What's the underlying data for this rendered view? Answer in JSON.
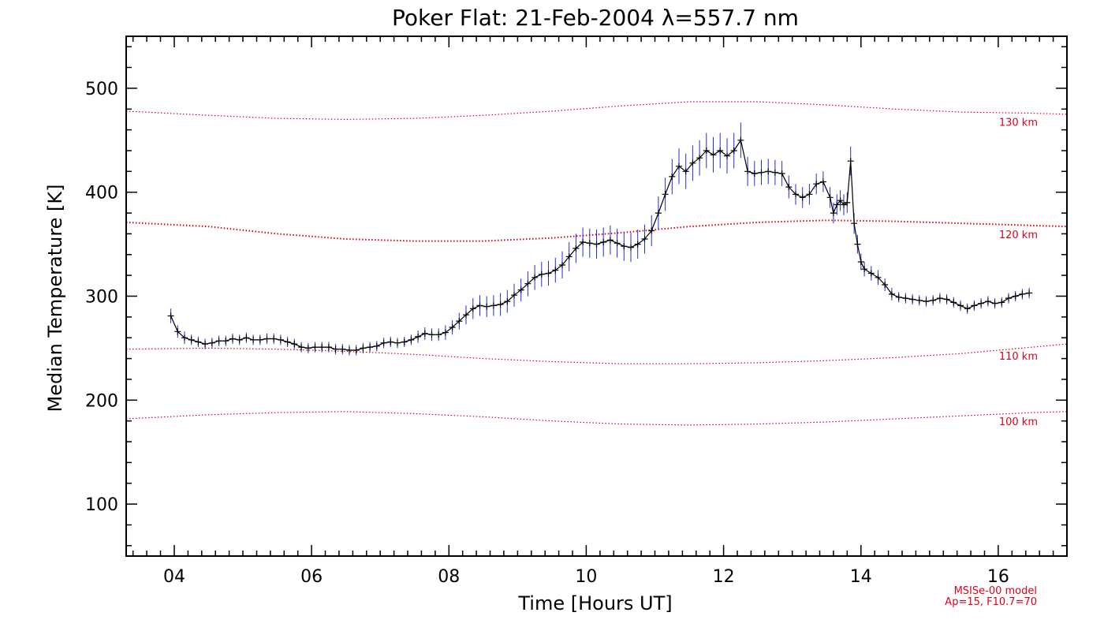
{
  "chart_data": {
    "type": "line",
    "title": "Poker Flat: 21-Feb-2004 λ=557.7 nm",
    "xlabel": "Time [Hours UT]",
    "ylabel": "Median Temperature [K]",
    "xlim": [
      3.3,
      17.0
    ],
    "ylim": [
      50,
      550
    ],
    "xticks": [
      4,
      6,
      8,
      10,
      12,
      14,
      16
    ],
    "xtick_labels": [
      "04",
      "06",
      "08",
      "10",
      "12",
      "14",
      "16"
    ],
    "yticks": [
      100,
      200,
      300,
      400,
      500
    ],
    "ytick_labels": [
      "100",
      "200",
      "300",
      "400",
      "500"
    ],
    "grid": false,
    "colors": {
      "data_line": "#000000",
      "error_bars": "#1f2fd6",
      "model": "#e0001b"
    },
    "series": [
      {
        "name": "",
        "x": [
          3.95,
          4.05,
          4.15,
          4.25,
          4.35,
          4.45,
          4.55,
          4.65,
          4.75,
          4.85,
          4.95,
          5.05,
          5.15,
          5.25,
          5.35,
          5.45,
          5.55,
          5.65,
          5.75,
          5.85,
          5.95,
          6.05,
          6.15,
          6.25,
          6.35,
          6.45,
          6.55,
          6.65,
          6.75,
          6.85,
          6.95,
          7.05,
          7.15,
          7.25,
          7.35,
          7.45,
          7.55,
          7.65,
          7.75,
          7.85,
          7.95,
          8.05,
          8.15,
          8.25,
          8.35,
          8.45,
          8.55,
          8.65,
          8.75,
          8.85,
          8.95,
          9.05,
          9.15,
          9.25,
          9.35,
          9.45,
          9.55,
          9.65,
          9.75,
          9.85,
          9.95,
          10.05,
          10.15,
          10.25,
          10.35,
          10.45,
          10.55,
          10.65,
          10.75,
          10.85,
          10.95,
          11.05,
          11.15,
          11.25,
          11.35,
          11.45,
          11.55,
          11.65,
          11.75,
          11.85,
          11.95,
          12.05,
          12.15,
          12.25,
          12.35,
          12.45,
          12.55,
          12.65,
          12.75,
          12.85,
          12.95,
          13.05,
          13.15,
          13.25,
          13.35,
          13.45,
          13.55,
          13.6,
          13.65,
          13.7,
          13.75,
          13.8,
          13.85,
          13.9,
          13.95,
          14.0,
          14.05,
          14.15,
          14.25,
          14.35,
          14.45,
          14.55,
          14.65,
          14.75,
          14.85,
          14.95,
          15.05,
          15.15,
          15.25,
          15.35,
          15.45,
          15.55,
          15.65,
          15.75,
          15.85,
          15.95,
          16.05,
          16.15,
          16.25,
          16.35,
          16.45
        ],
        "values": [
          281,
          266,
          260,
          258,
          256,
          254,
          255,
          257,
          257,
          259,
          258,
          260,
          258,
          258,
          259,
          259,
          258,
          256,
          254,
          251,
          250,
          251,
          251,
          251,
          249,
          249,
          248,
          248,
          250,
          251,
          252,
          255,
          256,
          255,
          256,
          258,
          261,
          264,
          263,
          263,
          265,
          270,
          276,
          282,
          288,
          291,
          290,
          291,
          292,
          295,
          301,
          306,
          312,
          318,
          321,
          322,
          325,
          330,
          338,
          346,
          352,
          351,
          350,
          352,
          354,
          351,
          348,
          347,
          350,
          355,
          363,
          380,
          398,
          415,
          425,
          420,
          428,
          433,
          440,
          436,
          440,
          435,
          440,
          450,
          420,
          418,
          419,
          420,
          419,
          418,
          405,
          398,
          395,
          398,
          408,
          410,
          395,
          380,
          388,
          392,
          388,
          390,
          430,
          370,
          350,
          333,
          326,
          322,
          318,
          311,
          302,
          299,
          298,
          297,
          296,
          295,
          296,
          298,
          297,
          294,
          291,
          288,
          291,
          293,
          295,
          293,
          294,
          298,
          300,
          302,
          303
        ],
        "errors": [
          7,
          6,
          6,
          5,
          5,
          5,
          5,
          5,
          5,
          5,
          5,
          5,
          5,
          5,
          5,
          5,
          5,
          5,
          5,
          5,
          5,
          5,
          5,
          5,
          5,
          5,
          5,
          5,
          5,
          5,
          5,
          5,
          5,
          5,
          5,
          5,
          6,
          6,
          6,
          6,
          7,
          7,
          8,
          9,
          10,
          10,
          10,
          10,
          11,
          11,
          11,
          11,
          12,
          12,
          12,
          12,
          12,
          13,
          14,
          14,
          14,
          14,
          14,
          14,
          14,
          14,
          14,
          14,
          14,
          14,
          15,
          16,
          16,
          17,
          17,
          17,
          17,
          17,
          17,
          17,
          17,
          17,
          17,
          17,
          14,
          12,
          12,
          12,
          12,
          12,
          11,
          10,
          10,
          10,
          10,
          10,
          10,
          10,
          10,
          10,
          10,
          10,
          14,
          10,
          9,
          8,
          7,
          7,
          7,
          6,
          6,
          5,
          5,
          5,
          5,
          5,
          5,
          5,
          5,
          5,
          5,
          5,
          5,
          5,
          5,
          5,
          5,
          5,
          5,
          5,
          5
        ]
      }
    ],
    "model_curves": [
      {
        "label": "130 km",
        "x": [
          3.3,
          4.5,
          5.5,
          6.5,
          7.5,
          8.5,
          9.5,
          10.5,
          11.5,
          12.5,
          13.5,
          14.5,
          15.5,
          16.5,
          17.0
        ],
        "values": [
          478,
          474,
          471,
          470,
          471,
          474,
          478,
          483,
          487,
          487,
          484,
          480,
          477,
          476,
          475
        ]
      },
      {
        "label": "120 km",
        "x": [
          3.3,
          4.5,
          5.5,
          6.5,
          7.5,
          8.5,
          9.5,
          10.5,
          11.5,
          12.5,
          13.5,
          14.5,
          15.5,
          16.5,
          17.0
        ],
        "values": [
          371,
          367,
          360,
          355,
          353,
          353,
          356,
          361,
          367,
          371,
          373,
          372,
          370,
          368,
          367
        ]
      },
      {
        "label": "110 km",
        "x": [
          3.3,
          4.5,
          5.5,
          6.5,
          7.5,
          8.5,
          9.5,
          10.5,
          11.5,
          12.5,
          13.5,
          14.5,
          15.5,
          16.5,
          17.0
        ],
        "values": [
          249,
          250,
          249,
          247,
          244,
          240,
          237,
          235,
          235,
          236,
          238,
          241,
          245,
          251,
          254
        ]
      },
      {
        "label": "100 km",
        "x": [
          3.3,
          4.5,
          5.5,
          6.5,
          7.5,
          8.5,
          9.5,
          10.5,
          11.5,
          12.5,
          13.5,
          14.5,
          15.5,
          16.5,
          17.0
        ],
        "values": [
          182,
          186,
          188,
          189,
          187,
          184,
          180,
          177,
          176,
          177,
          179,
          182,
          185,
          188,
          189
        ]
      }
    ],
    "annotations": [
      "MSISe-00 model",
      "Ap=15, F10.7=70"
    ]
  }
}
